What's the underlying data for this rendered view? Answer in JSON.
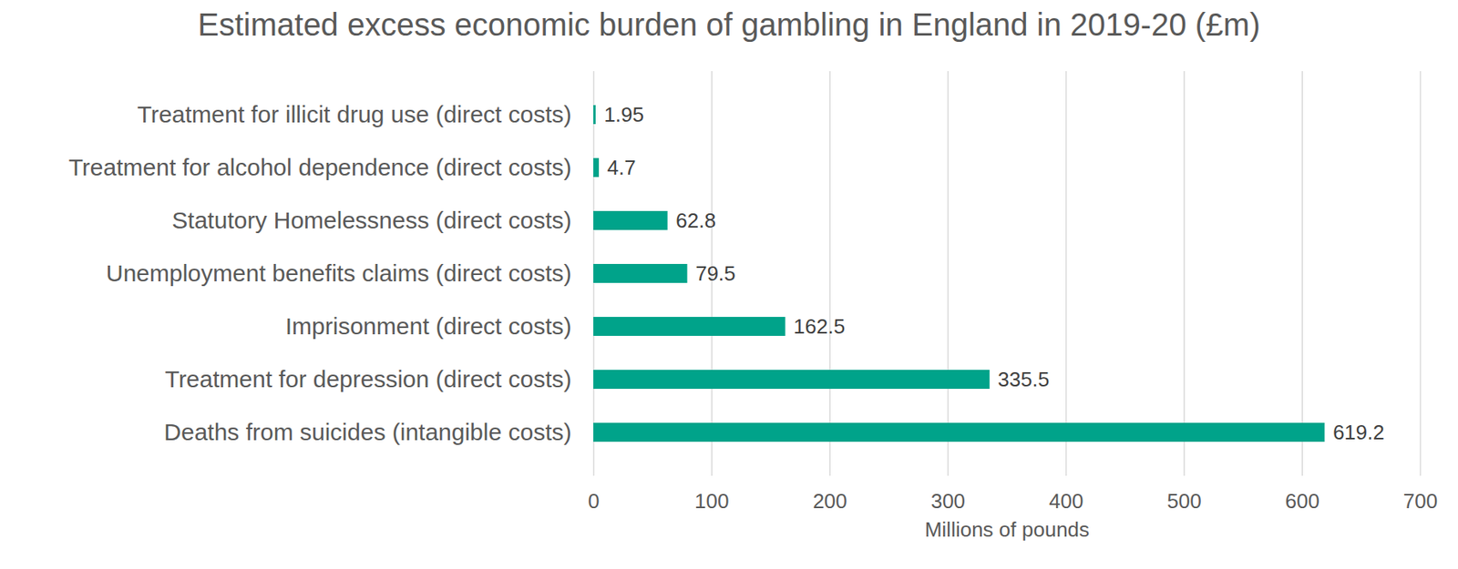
{
  "chart_data": {
    "type": "bar",
    "orientation": "horizontal",
    "title": "Estimated excess economic burden of gambling in England in 2019-20 (£m)",
    "x_label": "Millions of pounds",
    "categories": [
      "Treatment for illicit drug use (direct costs)",
      "Treatment for alcohol dependence (direct costs)",
      "Statutory Homelessness (direct costs)",
      "Unemployment benefits claims (direct costs)",
      "Imprisonment (direct costs)",
      "Treatment for depression (direct costs)",
      "Deaths from suicides (intangible costs)"
    ],
    "values": [
      1.95,
      4.7,
      62.8,
      79.5,
      162.5,
      335.5,
      619.2
    ],
    "color": "#00a38a",
    "xlim": [
      0,
      700
    ],
    "xticks": [
      0,
      100,
      200,
      300,
      400,
      500,
      600,
      700
    ],
    "grid": true,
    "data_labels": true
  }
}
